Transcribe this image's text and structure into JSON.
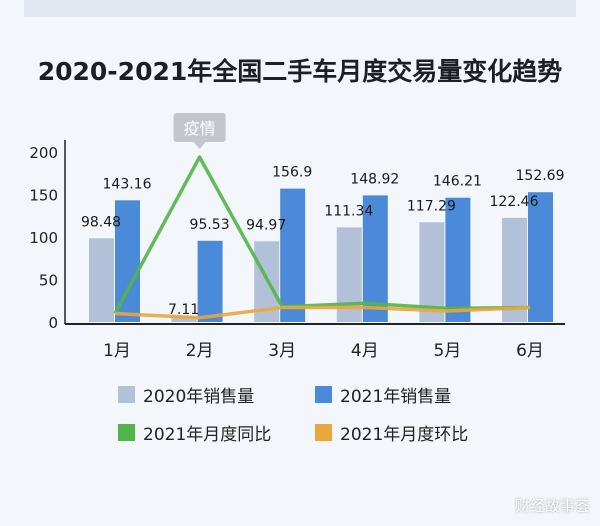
{
  "chart_data": {
    "type": "bar",
    "title": "2020-2021年全国二手车月度交易量变化趋势",
    "categories": [
      "1月",
      "2月",
      "3月",
      "4月",
      "5月",
      "6月"
    ],
    "ylim": [
      0,
      200
    ],
    "yticks": [
      0,
      50,
      100,
      150,
      200
    ],
    "grid": false,
    "legend_placement": "bottom",
    "series": [
      {
        "name": "2020年销售量",
        "kind": "bar",
        "color": "#b3c1d8",
        "values": [
          98.48,
          7.11,
          94.97,
          111.34,
          117.29,
          122.46
        ]
      },
      {
        "name": "2021年销售量",
        "kind": "bar",
        "color": "#4a8ad9",
        "values": [
          143.16,
          95.53,
          156.9,
          148.92,
          146.21,
          152.69
        ]
      },
      {
        "name": "2021年月度同比",
        "kind": "line",
        "color": "#52b548",
        "values": [
          10,
          194,
          18,
          22,
          16,
          17
        ]
      },
      {
        "name": "2021年月度环比",
        "kind": "line",
        "color": "#eaa73a",
        "values": [
          10,
          5,
          17,
          17,
          13,
          17
        ]
      }
    ],
    "annotation": {
      "text": "疫情",
      "category": "2月"
    }
  },
  "watermark": "财经故事荟"
}
